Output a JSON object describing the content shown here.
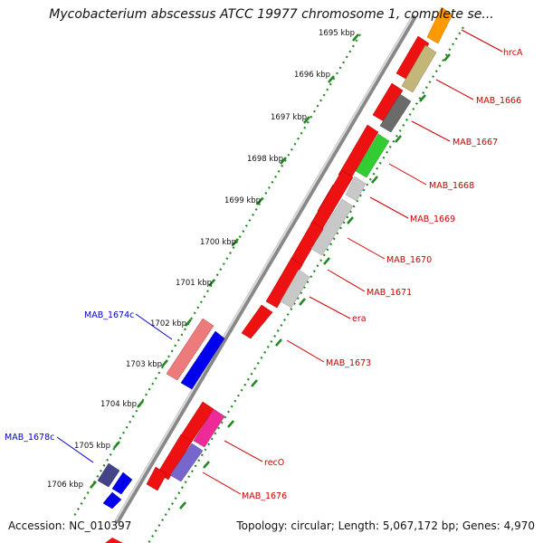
{
  "title": "Mycobacterium abscessus ATCC 19977 chromosome 1, complete se...",
  "accession": "Accession: NC_010397",
  "summary": "Topology: circular; Length: 5,067,172 bp; Genes: 4,970",
  "scale_ticks": [
    "1695 kbp",
    "1696 kbp",
    "1697 kbp",
    "1698 kbp",
    "1699 kbp",
    "1700 kbp",
    "1701 kbp",
    "1702 kbp",
    "1703 kbp",
    "1704 kbp",
    "1705 kbp",
    "1706 kbp"
  ],
  "gene_labels": [
    {
      "text": "hrcA",
      "strand": "forward"
    },
    {
      "text": "MAB_1666",
      "strand": "forward"
    },
    {
      "text": "MAB_1667",
      "strand": "forward"
    },
    {
      "text": "MAB_1668",
      "strand": "forward"
    },
    {
      "text": "MAB_1669",
      "strand": "forward"
    },
    {
      "text": "MAB_1670",
      "strand": "forward"
    },
    {
      "text": "MAB_1671",
      "strand": "forward"
    },
    {
      "text": "era",
      "strand": "forward"
    },
    {
      "text": "MAB_1673",
      "strand": "forward"
    },
    {
      "text": "recO",
      "strand": "forward"
    },
    {
      "text": "MAB_1676",
      "strand": "forward"
    },
    {
      "text": "MAB_1674c",
      "strand": "reverse"
    },
    {
      "text": "MAB_1678c",
      "strand": "reverse"
    }
  ],
  "colors": {
    "cds_red": "#ee1111",
    "orange": "#ff9900",
    "olive": "#c2b679",
    "dark_gray": "#6b6b6b",
    "green": "#33cc33",
    "light_gray": "#c8c8c8",
    "magenta": "#ee2a99",
    "lavender": "#7766cc",
    "salmon": "#ee7b7b",
    "blue": "#0000ee",
    "navy": "#444488",
    "tick_green": "#228822",
    "forward_label": "#cc0000",
    "reverse_label": "#0000cc"
  }
}
